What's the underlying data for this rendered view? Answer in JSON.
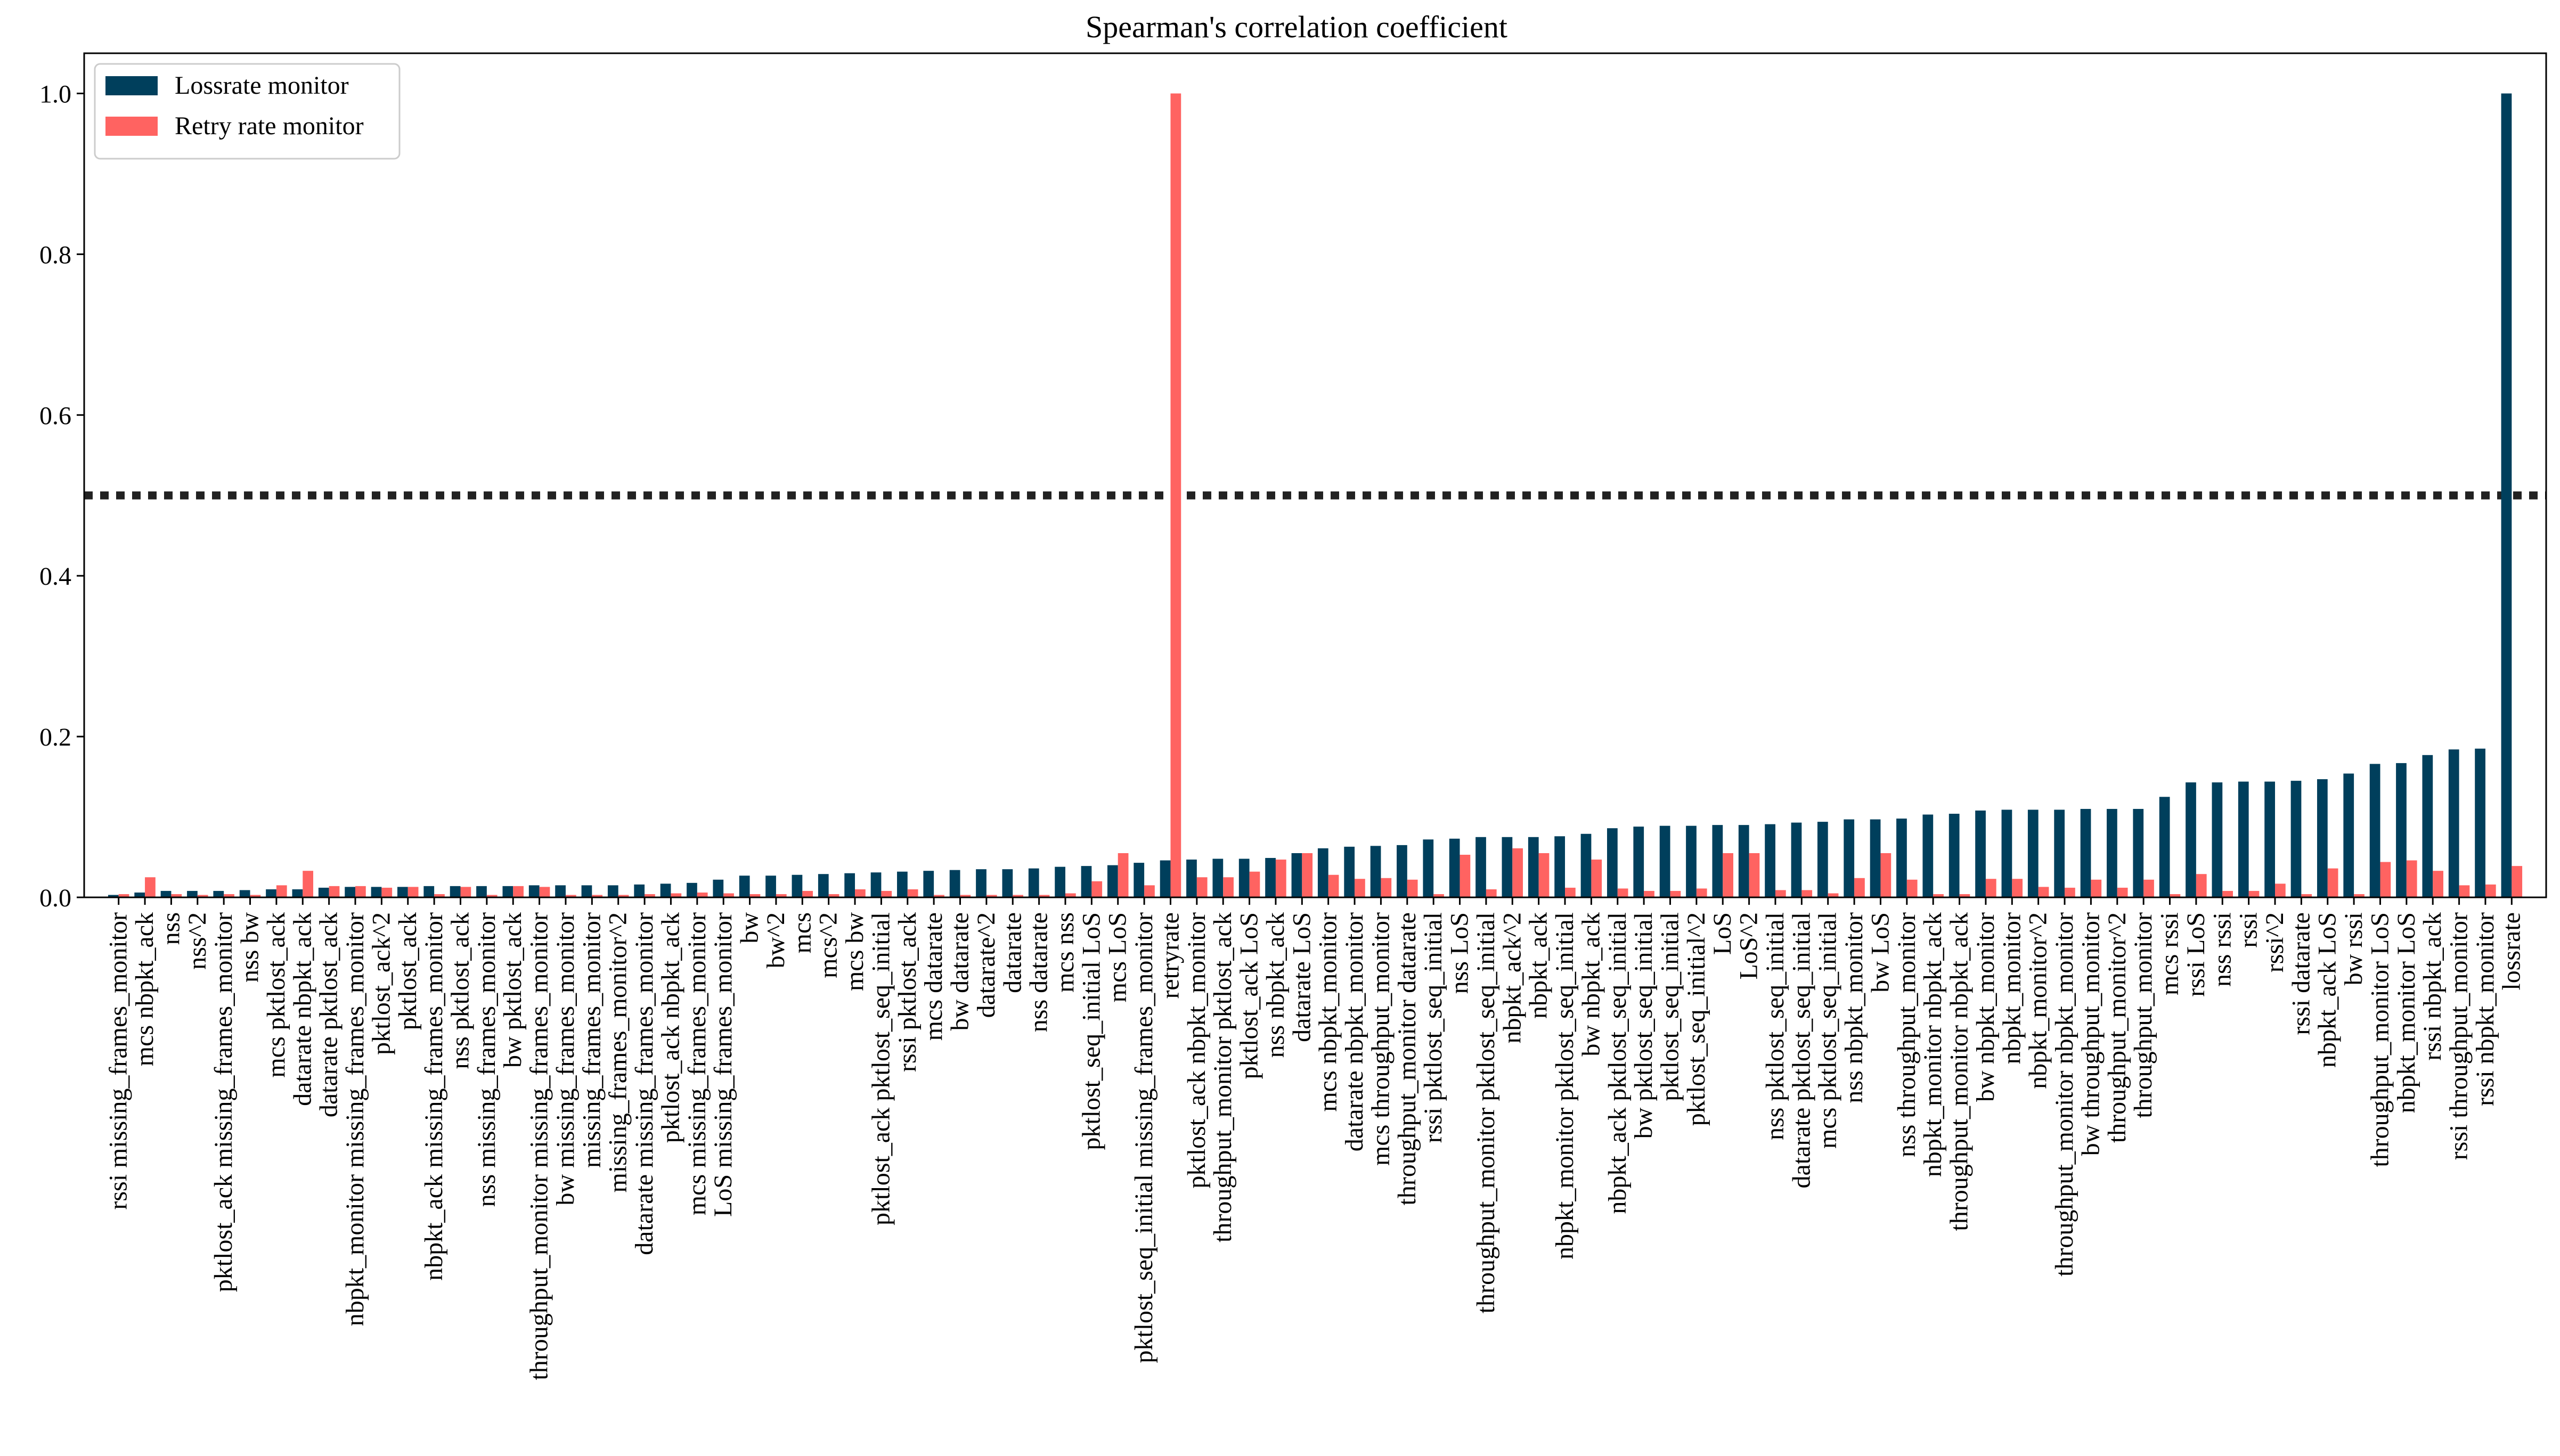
{
  "chart_data": {
    "type": "bar",
    "title": "Spearman's correlation coefficient",
    "xlabel": "",
    "ylabel": "",
    "ylim": [
      0,
      1.05
    ],
    "yticks": [
      0.0,
      0.2,
      0.4,
      0.6,
      0.8,
      1.0
    ],
    "ytick_labels": [
      "0.0",
      "0.2",
      "0.4",
      "0.6",
      "0.8",
      "1.0"
    ],
    "threshold": 0.5,
    "legend_position": "top-left",
    "colors": {
      "Lossrate monitor": "#003f5c",
      "Retry rate monitor": "#ff6361",
      "threshold": "#222222"
    },
    "categories": [
      "rssi missing_frames_monitor",
      "mcs nbpkt_ack",
      "nss",
      "nss^2",
      "pktlost_ack missing_frames_monitor",
      "nss bw",
      "mcs pktlost_ack",
      "datarate nbpkt_ack",
      "datarate pktlost_ack",
      "nbpkt_monitor missing_frames_monitor",
      "pktlost_ack^2",
      "pktlost_ack",
      "nbpkt_ack missing_frames_monitor",
      "nss pktlost_ack",
      "nss missing_frames_monitor",
      "bw pktlost_ack",
      "throughput_monitor missing_frames_monitor",
      "bw missing_frames_monitor",
      "missing_frames_monitor",
      "missing_frames_monitor^2",
      "datarate missing_frames_monitor",
      "pktlost_ack nbpkt_ack",
      "mcs missing_frames_monitor",
      "LoS missing_frames_monitor",
      "bw",
      "bw^2",
      "mcs",
      "mcs^2",
      "mcs bw",
      "pktlost_ack pktlost_seq_initial",
      "rssi pktlost_ack",
      "mcs datarate",
      "bw datarate",
      "datarate^2",
      "datarate",
      "nss datarate",
      "mcs nss",
      "pktlost_seq_initial LoS",
      "mcs LoS",
      "pktlost_seq_initial missing_frames_monitor",
      "retryrate",
      "pktlost_ack nbpkt_monitor",
      "throughput_monitor pktlost_ack",
      "pktlost_ack LoS",
      "nss nbpkt_ack",
      "datarate LoS",
      "mcs nbpkt_monitor",
      "datarate nbpkt_monitor",
      "mcs throughput_monitor",
      "throughput_monitor datarate",
      "rssi pktlost_seq_initial",
      "nss LoS",
      "throughput_monitor pktlost_seq_initial",
      "nbpkt_ack^2",
      "nbpkt_ack",
      "nbpkt_monitor pktlost_seq_initial",
      "bw nbpkt_ack",
      "nbpkt_ack pktlost_seq_initial",
      "bw pktlost_seq_initial",
      "pktlost_seq_initial",
      "pktlost_seq_initial^2",
      "LoS",
      "LoS^2",
      "nss pktlost_seq_initial",
      "datarate pktlost_seq_initial",
      "mcs pktlost_seq_initial",
      "nss nbpkt_monitor",
      "bw LoS",
      "nss throughput_monitor",
      "nbpkt_monitor nbpkt_ack",
      "throughput_monitor nbpkt_ack",
      "bw nbpkt_monitor",
      "nbpkt_monitor",
      "nbpkt_monitor^2",
      "throughput_monitor nbpkt_monitor",
      "bw throughput_monitor",
      "throughput_monitor^2",
      "throughput_monitor",
      "mcs rssi",
      "rssi LoS",
      "nss rssi",
      "rssi",
      "rssi^2",
      "rssi datarate",
      "nbpkt_ack LoS",
      "bw rssi",
      "throughput_monitor LoS",
      "nbpkt_monitor LoS",
      "rssi nbpkt_ack",
      "rssi throughput_monitor",
      "rssi nbpkt_monitor",
      "lossrate"
    ],
    "series": [
      {
        "name": "Lossrate monitor",
        "values": [
          0.003,
          0.006,
          0.008,
          0.008,
          0.008,
          0.009,
          0.01,
          0.01,
          0.012,
          0.013,
          0.013,
          0.013,
          0.014,
          0.014,
          0.014,
          0.014,
          0.015,
          0.015,
          0.015,
          0.015,
          0.016,
          0.017,
          0.018,
          0.022,
          0.027,
          0.027,
          0.028,
          0.029,
          0.03,
          0.031,
          0.032,
          0.033,
          0.034,
          0.035,
          0.035,
          0.036,
          0.038,
          0.039,
          0.04,
          0.043,
          0.046,
          0.047,
          0.048,
          0.048,
          0.049,
          0.055,
          0.061,
          0.063,
          0.064,
          0.065,
          0.072,
          0.073,
          0.075,
          0.075,
          0.075,
          0.076,
          0.079,
          0.086,
          0.088,
          0.089,
          0.089,
          0.09,
          0.09,
          0.091,
          0.093,
          0.094,
          0.097,
          0.097,
          0.098,
          0.103,
          0.104,
          0.108,
          0.109,
          0.109,
          0.109,
          0.11,
          0.11,
          0.11,
          0.125,
          0.143,
          0.143,
          0.144,
          0.144,
          0.145,
          0.147,
          0.154,
          0.166,
          0.167,
          0.177,
          0.184,
          0.185,
          1.0
        ]
      },
      {
        "name": "Retry rate monitor",
        "values": [
          0.004,
          0.025,
          0.004,
          0.003,
          0.004,
          0.003,
          0.015,
          0.033,
          0.014,
          0.014,
          0.012,
          0.013,
          0.004,
          0.013,
          0.003,
          0.014,
          0.013,
          0.003,
          0.003,
          0.003,
          0.004,
          0.005,
          0.006,
          0.005,
          0.004,
          0.004,
          0.008,
          0.004,
          0.01,
          0.008,
          0.01,
          0.003,
          0.003,
          0.003,
          0.003,
          0.003,
          0.005,
          0.02,
          0.055,
          0.015,
          1.0,
          0.025,
          0.025,
          0.032,
          0.047,
          0.055,
          0.028,
          0.023,
          0.024,
          0.022,
          0.004,
          0.053,
          0.01,
          0.061,
          0.055,
          0.012,
          0.047,
          0.011,
          0.008,
          0.008,
          0.011,
          0.055,
          0.055,
          0.009,
          0.009,
          0.005,
          0.024,
          0.055,
          0.022,
          0.004,
          0.004,
          0.023,
          0.023,
          0.013,
          0.012,
          0.022,
          0.012,
          0.022,
          0.004,
          0.029,
          0.008,
          0.008,
          0.017,
          0.004,
          0.036,
          0.004,
          0.044,
          0.046,
          0.033,
          0.015,
          0.016,
          0.039
        ]
      }
    ]
  }
}
